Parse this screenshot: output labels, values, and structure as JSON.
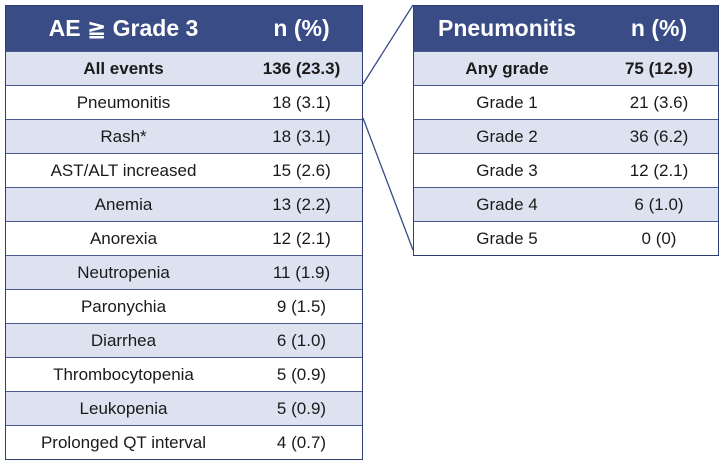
{
  "left_table": {
    "header": {
      "label": "AE ≧ Grade 3",
      "value": "n (%)"
    },
    "rows": [
      {
        "label": "All events",
        "value": "136 (23.3)"
      },
      {
        "label": "Pneumonitis",
        "value": "18 (3.1)"
      },
      {
        "label": "Rash*",
        "value": "18 (3.1)"
      },
      {
        "label": "AST/ALT increased",
        "value": "15 (2.6)"
      },
      {
        "label": "Anemia",
        "value": "13 (2.2)"
      },
      {
        "label": "Anorexia",
        "value": "12 (2.1)"
      },
      {
        "label": "Neutropenia",
        "value": "11 (1.9)"
      },
      {
        "label": "Paronychia",
        "value": "9 (1.5)"
      },
      {
        "label": "Diarrhea",
        "value": "6 (1.0)"
      },
      {
        "label": "Thrombocytopenia",
        "value": "5 (0.9)"
      },
      {
        "label": "Leukopenia",
        "value": "5 (0.9)"
      },
      {
        "label": "Prolonged QT interval",
        "value": "4 (0.7)"
      }
    ]
  },
  "right_table": {
    "header": {
      "label": "Pneumonitis",
      "value": "n (%)"
    },
    "rows": [
      {
        "label": "Any grade",
        "value": "75 (12.9)"
      },
      {
        "label": "Grade 1",
        "value": "21 (3.6)"
      },
      {
        "label": "Grade 2",
        "value": "36 (6.2)"
      },
      {
        "label": "Grade 3",
        "value": "12 (2.1)"
      },
      {
        "label": "Grade 4",
        "value": "6 (1.0)"
      },
      {
        "label": "Grade 5",
        "value": "0 (0)"
      }
    ]
  },
  "colors": {
    "header_bg": "#3a4c86",
    "alt_row_bg": "#dde2f0",
    "border": "#2f3f73"
  }
}
